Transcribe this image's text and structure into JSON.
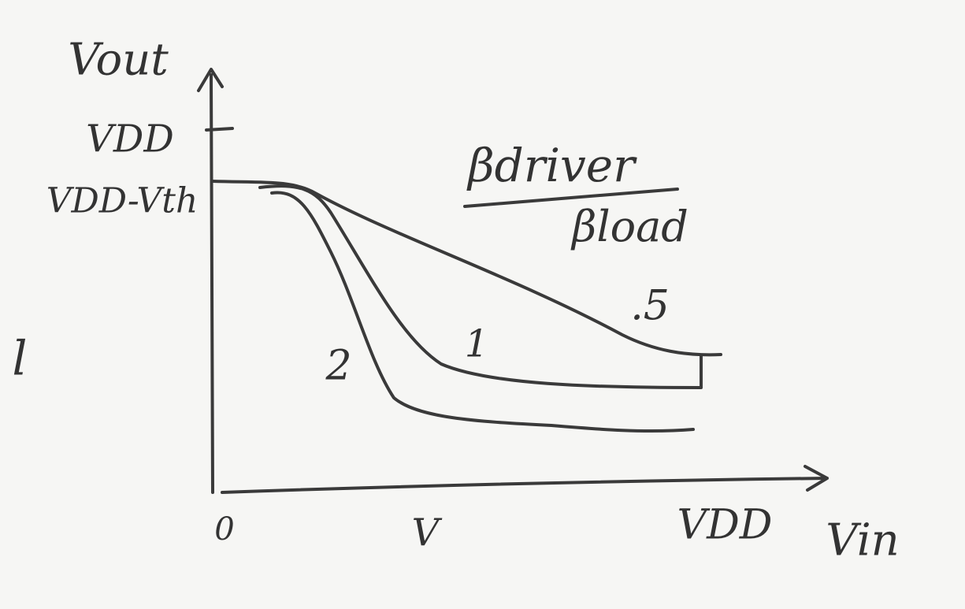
{
  "axes": {
    "y_label": "Vout",
    "x_label": "Vin",
    "origin": "0",
    "y_ticks": [
      "VDD",
      "VDD-Vth"
    ],
    "x_ticks": [
      "V",
      "VDD"
    ]
  },
  "ratio": {
    "numerator": "βdriver",
    "denominator": "βload"
  },
  "curves": [
    {
      "label": ".5"
    },
    {
      "label": "1"
    },
    {
      "label": "2"
    }
  ],
  "margin_note": "l"
}
